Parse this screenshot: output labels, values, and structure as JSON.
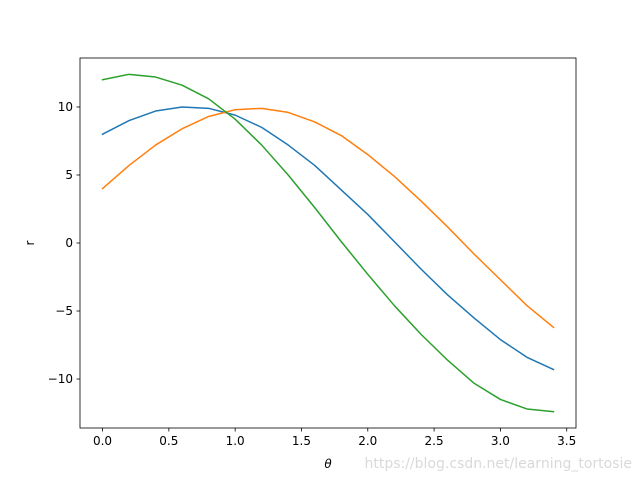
{
  "chart_data": {
    "type": "line",
    "title": "",
    "xlabel": "θ",
    "ylabel": "r",
    "xlim": [
      -0.17,
      3.57
    ],
    "ylim": [
      -13.6,
      13.6
    ],
    "xticks": [
      0.0,
      0.5,
      1.0,
      1.5,
      2.0,
      2.5,
      3.0,
      3.5
    ],
    "xtick_labels": [
      "0.0",
      "0.5",
      "1.0",
      "1.5",
      "2.0",
      "2.5",
      "3.0",
      "3.5"
    ],
    "yticks": [
      -10,
      -5,
      0,
      5,
      10
    ],
    "ytick_labels": [
      "−10",
      "−5",
      "0",
      "5",
      "10"
    ],
    "grid": false,
    "legend": null,
    "x": [
      0.0,
      0.2,
      0.4,
      0.6,
      0.8,
      1.0,
      1.2,
      1.4,
      1.6,
      1.8,
      2.0,
      2.2,
      2.4,
      2.6,
      2.8,
      3.0,
      3.2,
      3.4
    ],
    "series": [
      {
        "color": "#1f77b4",
        "values": [
          8.0,
          9.0,
          9.7,
          10.0,
          9.9,
          9.4,
          8.5,
          7.2,
          5.7,
          3.9,
          2.1,
          0.1,
          -1.9,
          -3.8,
          -5.5,
          -7.1,
          -8.4,
          -9.3
        ]
      },
      {
        "color": "#ff7f0e",
        "values": [
          4.0,
          5.7,
          7.2,
          8.4,
          9.3,
          9.8,
          9.9,
          9.6,
          8.9,
          7.9,
          6.5,
          4.9,
          3.1,
          1.2,
          -0.8,
          -2.7,
          -4.6,
          -6.2
        ]
      },
      {
        "color": "#2ca02c",
        "values": [
          12.0,
          12.4,
          12.2,
          11.6,
          10.6,
          9.1,
          7.2,
          5.0,
          2.6,
          0.1,
          -2.3,
          -4.6,
          -6.7,
          -8.6,
          -10.3,
          -11.5,
          -12.2,
          -12.4
        ]
      }
    ]
  },
  "watermark": "https://blog.csdn.net/learning_tortosie"
}
